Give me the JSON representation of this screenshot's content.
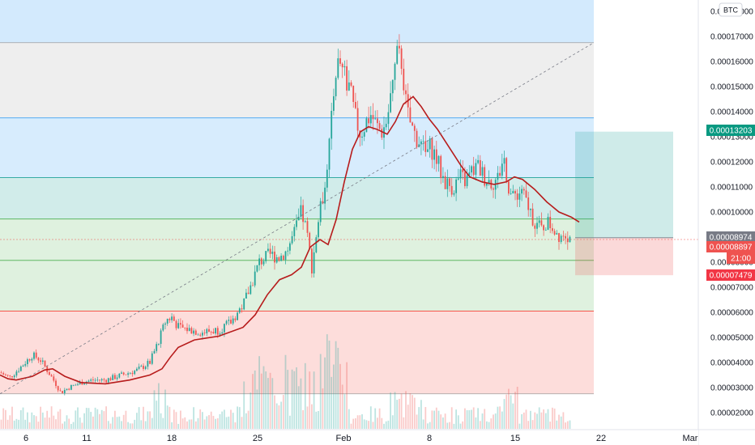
{
  "currency_button": "BTC",
  "colors": {
    "up": "#26a69a",
    "down": "#ef5350",
    "ma": "#b71c1c",
    "fib_blue": "#2196f3",
    "fib_gray": "#9e9e9e",
    "fib_teal": "#009688",
    "fib_green": "#4caf50",
    "fib_red": "#f44336",
    "target_zone": "#26a69a",
    "stop_zone": "#ef5350",
    "last_price_tag": "#ef5350",
    "entry_tag": "#787b86",
    "take_profit_tag": "#089981",
    "stop_tag": "#f23645"
  },
  "price_tags": {
    "take_profit": "0.00013203",
    "entry": "0.00008974",
    "last_price": "0.00008897",
    "countdown": "21:00",
    "stop": "0.00007479"
  },
  "chart_data": {
    "type": "candlestick",
    "title": "",
    "y_axis_ticks": [
      "0.00018000",
      "0.00017000",
      "0.00016000",
      "0.00015000",
      "0.00014000",
      "0.00013000",
      "0.00012000",
      "0.00011000",
      "0.00010000",
      "0.00009000",
      "0.00008000",
      "0.00007000",
      "0.00006000",
      "0.00005000",
      "0.00004000",
      "0.00003000",
      "0.00002000"
    ],
    "x_axis_ticks": [
      "6",
      "11",
      "18",
      "25",
      "Feb",
      "8",
      "15",
      "22",
      "Mar"
    ],
    "ylim": [
      1.63e-05,
      0.0001838
    ],
    "grid": false,
    "fib_levels": [
      0.0001675,
      0.0001375,
      0.0001137,
      9.72e-05,
      8.07e-05,
      6.05e-05,
      2.75e-05
    ],
    "long_position": {
      "entry": 8.974e-05,
      "take_profit": 0.00013203,
      "stop": 7.479e-05
    },
    "moving_average_path": [
      [
        0,
        3.5
      ],
      [
        10,
        3.35
      ],
      [
        20,
        3.3
      ],
      [
        40,
        3.45
      ],
      [
        55,
        3.7
      ],
      [
        65,
        3.75
      ],
      [
        80,
        3.45
      ],
      [
        100,
        3.2
      ],
      [
        130,
        3.15
      ],
      [
        160,
        3.3
      ],
      [
        185,
        3.5
      ],
      [
        200,
        3.75
      ],
      [
        210,
        4.2
      ],
      [
        220,
        4.6
      ],
      [
        240,
        4.9
      ],
      [
        270,
        5.05
      ],
      [
        300,
        5.4
      ],
      [
        315,
        5.9
      ],
      [
        330,
        6.7
      ],
      [
        345,
        7.3
      ],
      [
        360,
        7.5
      ],
      [
        372,
        7.8
      ],
      [
        383,
        8.6
      ],
      [
        395,
        8.9
      ],
      [
        405,
        8.7
      ],
      [
        415,
        9.7
      ],
      [
        425,
        11.2
      ],
      [
        435,
        12.5
      ],
      [
        445,
        13.2
      ],
      [
        455,
        13.4
      ],
      [
        465,
        13.3
      ],
      [
        478,
        13.1
      ],
      [
        488,
        13.6
      ],
      [
        498,
        14.3
      ],
      [
        510,
        14.6
      ],
      [
        520,
        14.2
      ],
      [
        530,
        13.7
      ],
      [
        540,
        13.3
      ],
      [
        550,
        12.8
      ],
      [
        560,
        12.3
      ],
      [
        570,
        11.8
      ],
      [
        580,
        11.4
      ],
      [
        595,
        11.2
      ],
      [
        610,
        11.1
      ],
      [
        625,
        11.2
      ],
      [
        635,
        11.4
      ],
      [
        645,
        11.3
      ],
      [
        660,
        10.9
      ],
      [
        675,
        10.4
      ],
      [
        690,
        10.0
      ],
      [
        705,
        9.8
      ],
      [
        715,
        9.6
      ]
    ],
    "price_path": [
      [
        0,
        3.6
      ],
      [
        12,
        3.4
      ],
      [
        25,
        3.8
      ],
      [
        40,
        4.3
      ],
      [
        50,
        4.1
      ],
      [
        60,
        3.6
      ],
      [
        68,
        3.2
      ],
      [
        75,
        2.8
      ],
      [
        85,
        3.0
      ],
      [
        100,
        3.2
      ],
      [
        115,
        3.3
      ],
      [
        130,
        3.3
      ],
      [
        150,
        3.5
      ],
      [
        170,
        3.7
      ],
      [
        185,
        4.0
      ],
      [
        195,
        4.8
      ],
      [
        205,
        5.7
      ],
      [
        212,
        5.8
      ],
      [
        220,
        5.4
      ],
      [
        235,
        5.3
      ],
      [
        250,
        5.2
      ],
      [
        270,
        5.3
      ],
      [
        285,
        5.6
      ],
      [
        300,
        6.3
      ],
      [
        310,
        7.1
      ],
      [
        320,
        8.0
      ],
      [
        333,
        8.3
      ],
      [
        345,
        8.2
      ],
      [
        355,
        8.5
      ],
      [
        365,
        9.3
      ],
      [
        372,
        10.0
      ],
      [
        378,
        9.3
      ],
      [
        385,
        7.8
      ],
      [
        392,
        9.5
      ],
      [
        398,
        10.5
      ],
      [
        404,
        12.0
      ],
      [
        409,
        13.5
      ],
      [
        414,
        15.7
      ],
      [
        420,
        16.0
      ],
      [
        425,
        15.5
      ],
      [
        432,
        14.8
      ],
      [
        438,
        13.8
      ],
      [
        445,
        13.1
      ],
      [
        452,
        13.6
      ],
      [
        458,
        13.9
      ],
      [
        465,
        13.4
      ],
      [
        472,
        13.2
      ],
      [
        478,
        13.7
      ],
      [
        484,
        15.0
      ],
      [
        490,
        16.2
      ],
      [
        496,
        16.0
      ],
      [
        502,
        14.0
      ],
      [
        510,
        13.2
      ],
      [
        518,
        12.8
      ],
      [
        525,
        12.3
      ],
      [
        532,
        12.6
      ],
      [
        538,
        12.2
      ],
      [
        545,
        11.5
      ],
      [
        552,
        11.1
      ],
      [
        560,
        11.0
      ],
      [
        568,
        11.4
      ],
      [
        575,
        11.2
      ],
      [
        582,
        11.6
      ],
      [
        590,
        11.8
      ],
      [
        598,
        11.4
      ],
      [
        606,
        11.2
      ],
      [
        614,
        11.3
      ],
      [
        622,
        12.2
      ],
      [
        628,
        11.0
      ],
      [
        633,
        10.5
      ],
      [
        638,
        10.8
      ],
      [
        645,
        10.7
      ],
      [
        652,
        10.2
      ],
      [
        660,
        9.6
      ],
      [
        668,
        9.3
      ],
      [
        675,
        9.6
      ],
      [
        682,
        9.4
      ],
      [
        690,
        9.1
      ],
      [
        698,
        9.2
      ],
      [
        705,
        8.9
      ]
    ]
  }
}
